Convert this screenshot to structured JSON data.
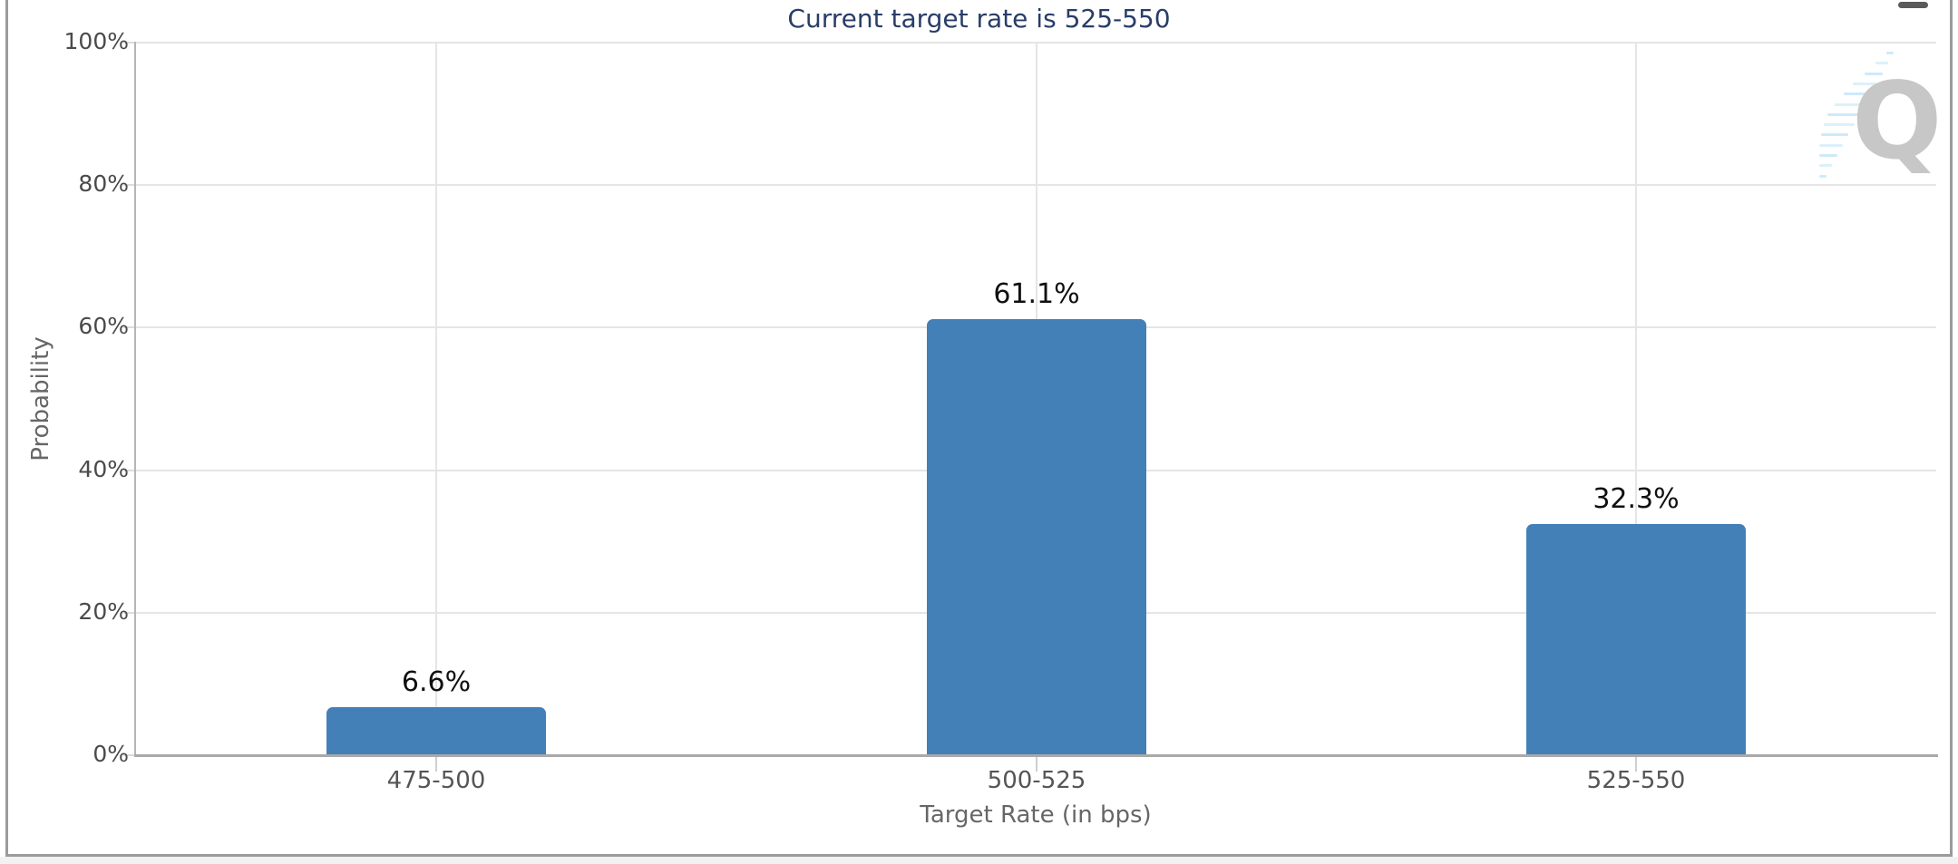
{
  "header": {
    "menu_icon": "hamburger-menu"
  },
  "chart_data": {
    "type": "bar",
    "title": "Current target rate is 525-550",
    "xlabel": "Target Rate (in bps)",
    "ylabel": "Probability",
    "categories": [
      "475-500",
      "500-525",
      "525-550"
    ],
    "values": [
      6.6,
      61.1,
      32.3
    ],
    "value_labels": [
      "6.6%",
      "61.1%",
      "32.3%"
    ],
    "ytick_values": [
      0,
      20,
      40,
      60,
      80,
      100
    ],
    "ytick_labels": [
      "0%",
      "20%",
      "40%",
      "60%",
      "80%",
      "100%"
    ],
    "ylim": [
      0,
      100
    ],
    "grid": true,
    "legend_position": "none",
    "bar_color": "#4380b8",
    "title_color": "#293d68"
  },
  "watermark": {
    "letter": "Q",
    "gray_color": "#c7c7c7",
    "accent_color": "#c9e8f8"
  }
}
